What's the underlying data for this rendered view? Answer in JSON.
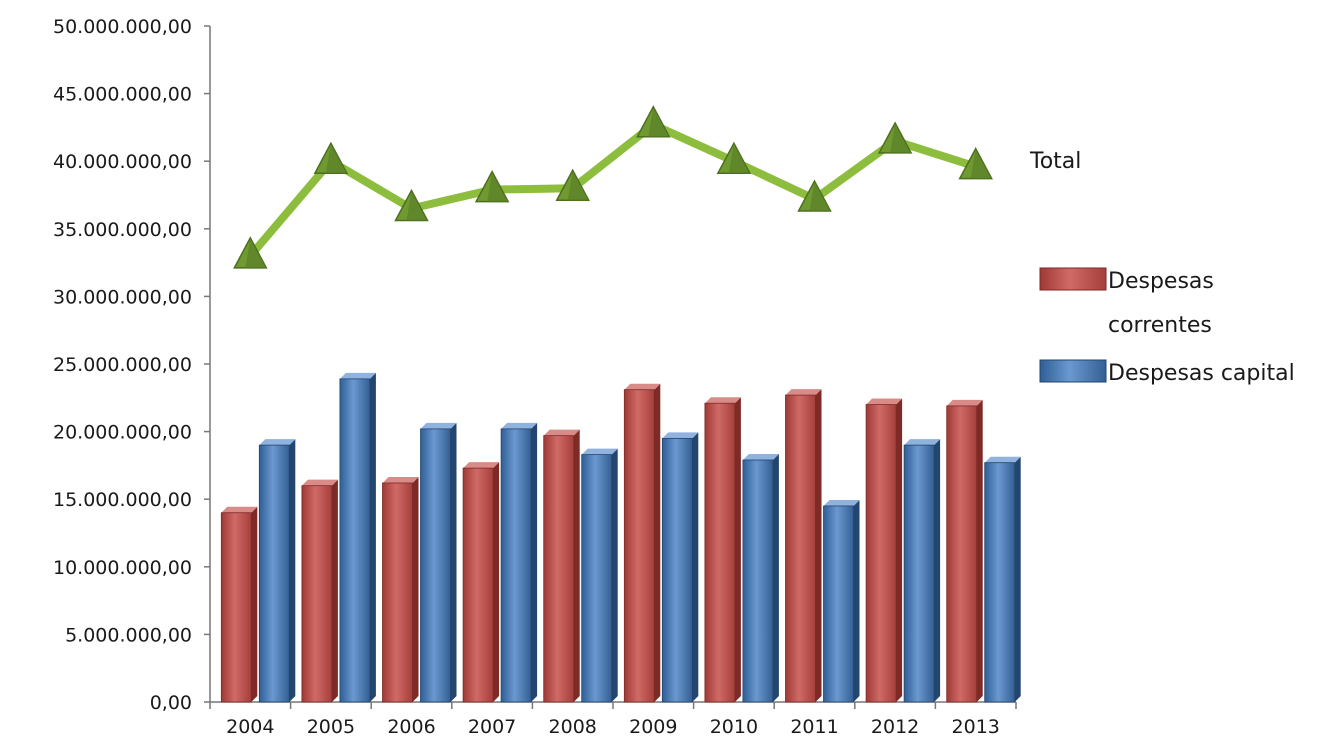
{
  "chart_data": {
    "type": "bar",
    "title": "",
    "xlabel": "",
    "ylabel": "",
    "ylim": [
      0,
      50000000
    ],
    "y_ticks": [
      {
        "value": 0,
        "label": "0,00"
      },
      {
        "value": 5000000,
        "label": "5.000.000,00"
      },
      {
        "value": 10000000,
        "label": "10.000.000,00"
      },
      {
        "value": 15000000,
        "label": "15.000.000,00"
      },
      {
        "value": 20000000,
        "label": "20.000.000,00"
      },
      {
        "value": 25000000,
        "label": "25.000.000,00"
      },
      {
        "value": 30000000,
        "label": "30.000.000,00"
      },
      {
        "value": 35000000,
        "label": "35.000.000,00"
      },
      {
        "value": 40000000,
        "label": "40.000.000,00"
      },
      {
        "value": 45000000,
        "label": "45.000.000,00"
      },
      {
        "value": 50000000,
        "label": "50.000.000,00"
      }
    ],
    "categories": [
      "2004",
      "2005",
      "2006",
      "2007",
      "2008",
      "2009",
      "2010",
      "2011",
      "2012",
      "2013"
    ],
    "series": [
      {
        "name": "Despesas correntes",
        "name_lines": [
          "Despesas",
          "correntes"
        ],
        "type": "bar",
        "color": "#c0504d",
        "values": [
          14000000,
          16000000,
          16200000,
          17300000,
          19700000,
          23100000,
          22100000,
          22700000,
          22000000,
          21900000
        ]
      },
      {
        "name": "Despesas capital",
        "name_lines": [
          "Despesas capital"
        ],
        "type": "bar",
        "color": "#4f81bd",
        "values": [
          19000000,
          23900000,
          20200000,
          20200000,
          18300000,
          19500000,
          17900000,
          14500000,
          19000000,
          17700000
        ]
      },
      {
        "name": "Total",
        "name_lines": [
          "Total"
        ],
        "type": "line",
        "color": "#8cbd3c",
        "values": [
          33000000,
          40000000,
          36500000,
          37900000,
          38000000,
          42700000,
          40000000,
          37200000,
          41500000,
          39600000
        ]
      }
    ],
    "legend_position": "right",
    "grid": false
  }
}
